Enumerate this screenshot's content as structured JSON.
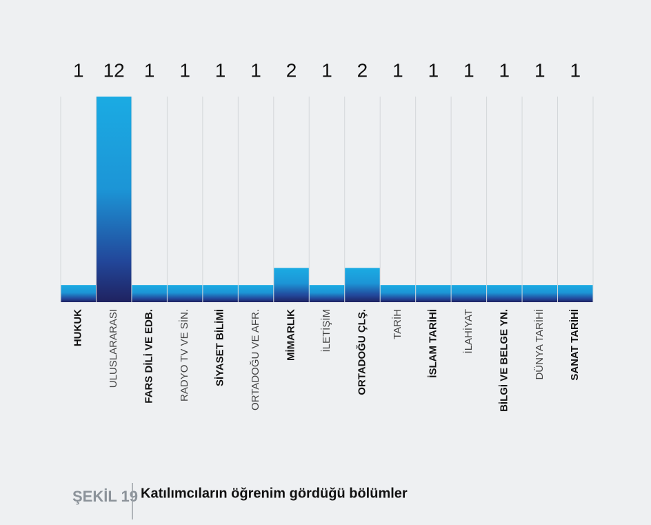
{
  "chart_data": {
    "type": "bar",
    "title": "Katılımcıların öğrenim gördüğü bölümler",
    "figure_label": "ŞEKİL 19",
    "categories": [
      "HUKUK",
      "ULUSLARARASI",
      "FARS DİLİ VE EDB.",
      "RADYO TV VE SİN.",
      "SİYASET BİLİMİ",
      "ORTADOĞU VE AFR.",
      "MİMARLIK",
      "İLETİŞİM",
      "ORTADOĞU ÇLŞ.",
      "TARİH",
      "İSLAM TARİHİ",
      "İLAHİYAT",
      "BİLGİ VE BELGE  YN.",
      "DÜNYA TARİHİ",
      "SANAT TARİHİ"
    ],
    "values": [
      1,
      12,
      1,
      1,
      1,
      1,
      2,
      1,
      2,
      1,
      1,
      1,
      1,
      1,
      1
    ]
  }
}
